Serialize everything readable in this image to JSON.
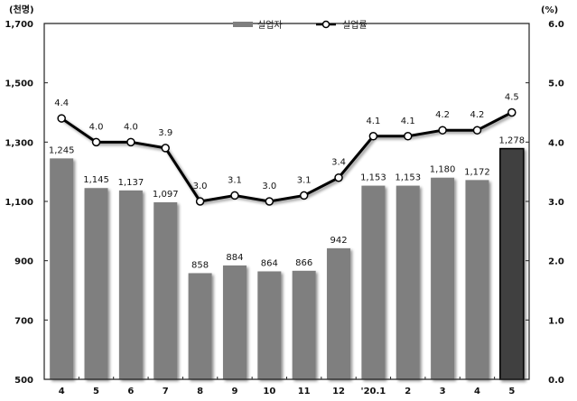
{
  "chart_data": {
    "type": "bar+line",
    "title": "",
    "categories": [
      "4",
      "5",
      "6",
      "7",
      "8",
      "9",
      "10",
      "11",
      "12",
      "'20.1",
      "2",
      "3",
      "4",
      "5"
    ],
    "series": [
      {
        "name": "실업자",
        "type": "bar",
        "axis": "left",
        "unit": "천명",
        "values": [
          1245,
          1145,
          1137,
          1097,
          858,
          884,
          864,
          866,
          942,
          1153,
          1153,
          1180,
          1172,
          1278
        ],
        "labels": [
          "1,245",
          "1,145",
          "1,137",
          "1,097",
          "858",
          "884",
          "864",
          "866",
          "942",
          "1,153",
          "1,153",
          "1,180",
          "1,172",
          "1,278"
        ],
        "color": "#7f7f7f",
        "highlight_color": "#404040",
        "highlight_index": 13
      },
      {
        "name": "실업률",
        "type": "line",
        "axis": "right",
        "unit": "%",
        "values": [
          4.4,
          4.0,
          4.0,
          3.9,
          3.0,
          3.1,
          3.0,
          3.1,
          3.4,
          4.1,
          4.1,
          4.2,
          4.2,
          4.5
        ],
        "labels": [
          "4.4",
          "4.0",
          "4.0",
          "3.9",
          "3.0",
          "3.1",
          "3.0",
          "3.1",
          "3.4",
          "4.1",
          "4.1",
          "4.2",
          "4.2",
          "4.5"
        ],
        "color": "#000000",
        "marker": "open-circle"
      }
    ],
    "left_axis": {
      "unit_label": "(천명)",
      "ylim": [
        500,
        1700
      ],
      "ticks": [
        500,
        700,
        900,
        1100,
        1300,
        1500,
        1700
      ],
      "tick_labels": [
        "500",
        "700",
        "900",
        "1,100",
        "1,300",
        "1,500",
        "1,700"
      ]
    },
    "right_axis": {
      "unit_label": "(%)",
      "ylim": [
        0.0,
        6.0
      ],
      "ticks": [
        0,
        1,
        2,
        3,
        4,
        5,
        6
      ],
      "tick_labels": [
        "0.0",
        "1.0",
        "2.0",
        "3.0",
        "4.0",
        "5.0",
        "6.0"
      ]
    },
    "xlabel": "",
    "ylabel": "",
    "grid": false,
    "legend": {
      "position": "top-center",
      "entries": [
        "실업자",
        "실업률"
      ]
    }
  }
}
